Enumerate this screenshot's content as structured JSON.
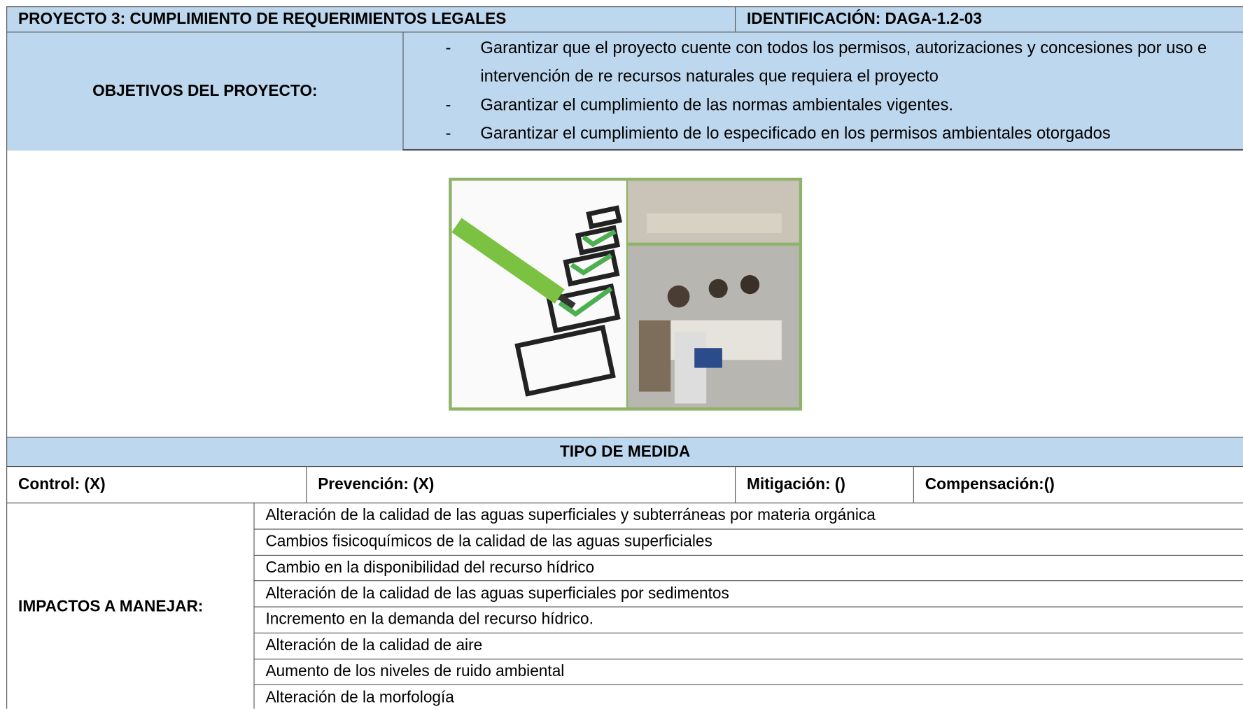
{
  "header": {
    "title": "PROYECTO 3: CUMPLIMIENTO DE REQUERIMIENTOS LEGALES",
    "identification": "IDENTIFICACIÓN: DAGA-1.2-03"
  },
  "objectives": {
    "label": "OBJETIVOS DEL PROYECTO:",
    "items": [
      "Garantizar que el proyecto cuente con todos los permisos, autorizaciones y concesiones por uso e intervención de re recursos naturales que requiera el proyecto",
      "Garantizar el cumplimiento de las normas ambientales vigentes.",
      "Garantizar el cumplimiento de lo especificado en los permisos ambientales otorgados"
    ]
  },
  "measure_type": {
    "title": "TIPO DE MEDIDA",
    "options": [
      "Control: (X)",
      "Prevención: (X)",
      "Mitigación: ()",
      "Compensación:()"
    ]
  },
  "impacts": {
    "label": "IMPACTOS A MANEJAR:",
    "items": [
      "Alteración de la calidad de las aguas superficiales y subterráneas por materia orgánica",
      "Cambios fisicoquímicos de la calidad de las aguas superficiales",
      "Cambio en la disponibilidad del recurso hídrico",
      "Alteración de la calidad de las aguas superficiales por sedimentos",
      "Incremento en la demanda del recurso hídrico.",
      "Alteración de la calidad de aire",
      "Aumento de los niveles de ruido ambiental",
      "Alteración de la morfología"
    ]
  }
}
